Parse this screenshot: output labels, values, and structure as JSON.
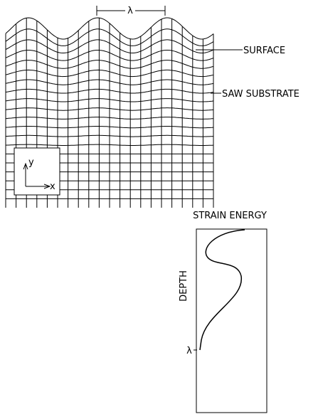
{
  "diagram": {
    "wavelength_label": "λ",
    "surface_label": "SURFACE",
    "substrate_label": "SAW SUBSTRATE",
    "axis_y_label": "y",
    "axis_x_label": "x",
    "plot_title": "STRAIN ENERGY",
    "plot_axis_label": "DEPTH",
    "depth_marker_label": "λ"
  }
}
